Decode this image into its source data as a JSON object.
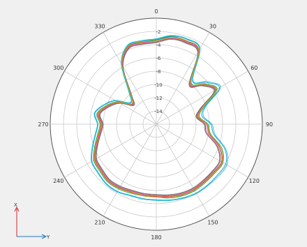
{
  "chart_data": {
    "type": "polar-line",
    "angle_direction": "clockwise",
    "zero_at": "top",
    "angle_labels": [
      "0",
      "30",
      "60",
      "90",
      "120",
      "150",
      "180",
      "210",
      "240",
      "270",
      "300",
      "330"
    ],
    "angle_ticks": [
      0,
      30,
      60,
      90,
      120,
      150,
      180,
      210,
      240,
      270,
      300,
      330
    ],
    "r_range": [
      -16,
      0
    ],
    "ring_values": [
      -2,
      -4,
      -6,
      -8,
      -10,
      -12,
      -14
    ],
    "ring_labels": [
      "-2",
      "-4",
      "-6",
      "-8",
      "-10",
      "-12",
      "-14"
    ],
    "axes_triad": {
      "vertical": "X",
      "horizontal": "Y"
    },
    "theta": [
      0,
      10,
      20,
      30,
      40,
      50,
      60,
      70,
      80,
      90,
      100,
      110,
      120,
      130,
      140,
      150,
      160,
      170,
      180,
      190,
      200,
      210,
      220,
      230,
      240,
      250,
      260,
      270,
      280,
      290,
      300,
      310,
      320,
      330,
      340,
      350
    ],
    "series": [
      {
        "color": "#1f9bd6",
        "values": [
          -3.2,
          -2.5,
          -2.4,
          -2.9,
          -7.5,
          -6.2,
          -5.0,
          -8.2,
          -9.0,
          -7.8,
          -7.2,
          -5.0,
          -3.9,
          -4.0,
          -4.0,
          -4.0,
          -4.2,
          -4.4,
          -4.6,
          -4.6,
          -4.6,
          -4.3,
          -4.3,
          -4.6,
          -4.8,
          -5.8,
          -6.7,
          -7.2,
          -6.6,
          -7.6,
          -8.9,
          -11.0,
          -9.6,
          -5.5,
          -3.4,
          -3.3
        ]
      },
      {
        "color": "#1a9641",
        "values": [
          -3.3,
          -2.6,
          -2.6,
          -3.1,
          -7.8,
          -6.5,
          -5.4,
          -8.4,
          -9.4,
          -8.2,
          -7.7,
          -5.5,
          -4.4,
          -4.5,
          -4.5,
          -4.4,
          -4.5,
          -4.7,
          -5.0,
          -5.0,
          -4.9,
          -4.7,
          -4.6,
          -4.9,
          -5.1,
          -6.1,
          -7.0,
          -7.5,
          -6.9,
          -7.9,
          -9.2,
          -11.2,
          -9.8,
          -5.6,
          -3.5,
          -3.4
        ]
      },
      {
        "color": "#d62728",
        "values": [
          -3.4,
          -2.7,
          -2.7,
          -3.2,
          -8.0,
          -6.7,
          -5.6,
          -8.6,
          -9.6,
          -8.4,
          -7.9,
          -5.8,
          -4.6,
          -4.7,
          -4.7,
          -4.6,
          -4.7,
          -4.9,
          -5.1,
          -5.1,
          -5.1,
          -4.9,
          -4.8,
          -5.1,
          -5.3,
          -6.3,
          -7.2,
          -7.7,
          -7.1,
          -8.1,
          -9.4,
          -11.3,
          -9.9,
          -5.7,
          -3.6,
          -3.5
        ]
      },
      {
        "color": "#e377c2",
        "values": [
          -3.5,
          -2.8,
          -2.8,
          -3.3,
          -8.1,
          -6.8,
          -5.7,
          -8.7,
          -9.7,
          -8.6,
          -8.1,
          -6.0,
          -4.7,
          -4.8,
          -4.8,
          -4.7,
          -4.8,
          -5.0,
          -5.2,
          -5.2,
          -5.2,
          -5.0,
          -4.9,
          -5.2,
          -5.4,
          -6.4,
          -7.3,
          -7.8,
          -7.2,
          -8.2,
          -9.5,
          -11.4,
          -10.0,
          -5.8,
          -3.7,
          -3.6
        ]
      },
      {
        "color": "#8c564b",
        "values": [
          -3.6,
          -2.9,
          -2.9,
          -3.4,
          -8.2,
          -6.9,
          -5.8,
          -8.8,
          -9.8,
          -8.7,
          -8.3,
          -6.2,
          -4.9,
          -4.9,
          -4.9,
          -4.8,
          -4.9,
          -5.1,
          -5.3,
          -5.3,
          -5.3,
          -5.1,
          -5.0,
          -5.3,
          -5.5,
          -6.5,
          -7.4,
          -7.9,
          -7.3,
          -8.3,
          -9.6,
          -11.5,
          -10.1,
          -5.9,
          -3.8,
          -3.7
        ]
      },
      {
        "color": "#bcbd22",
        "values": [
          -3.4,
          -2.7,
          -2.6,
          -3.1,
          -7.9,
          -6.6,
          -5.5,
          -8.5,
          -9.5,
          -8.3,
          -7.8,
          -5.6,
          -4.5,
          -4.6,
          -4.6,
          -4.5,
          -4.6,
          -4.8,
          -5.0,
          -5.0,
          -5.0,
          -4.8,
          -4.7,
          -5.0,
          -5.2,
          -6.2,
          -7.1,
          -7.6,
          -7.0,
          -8.0,
          -9.3,
          -11.2,
          -9.8,
          -5.6,
          -3.5,
          -3.4
        ]
      },
      {
        "color": "#17becf",
        "values": [
          -3.1,
          -2.4,
          -2.3,
          -2.8,
          -7.4,
          -6.0,
          -4.8,
          -8.0,
          -8.8,
          -7.6,
          -7.0,
          -4.8,
          -3.7,
          -3.8,
          -3.9,
          -3.9,
          -4.1,
          -4.3,
          -4.5,
          -4.5,
          -4.5,
          -4.2,
          -4.2,
          -4.5,
          -4.7,
          -5.7,
          -6.6,
          -7.1,
          -6.5,
          -7.5,
          -8.8,
          -10.9,
          -9.5,
          -5.4,
          -3.3,
          -3.2
        ]
      },
      {
        "color": "#7f7f7f",
        "values": [
          -3.7,
          -3.0,
          -3.0,
          -3.5,
          -8.3,
          -7.0,
          -5.9,
          -8.9,
          -9.9,
          -8.8,
          -8.4,
          -6.3,
          -5.0,
          -5.0,
          -5.0,
          -4.9,
          -5.0,
          -5.2,
          -5.4,
          -5.4,
          -5.4,
          -5.2,
          -5.1,
          -5.4,
          -5.6,
          -6.6,
          -7.5,
          -8.0,
          -7.4,
          -8.4,
          -9.7,
          -11.6,
          -10.2,
          -6.0,
          -3.9,
          -3.8
        ]
      }
    ]
  }
}
